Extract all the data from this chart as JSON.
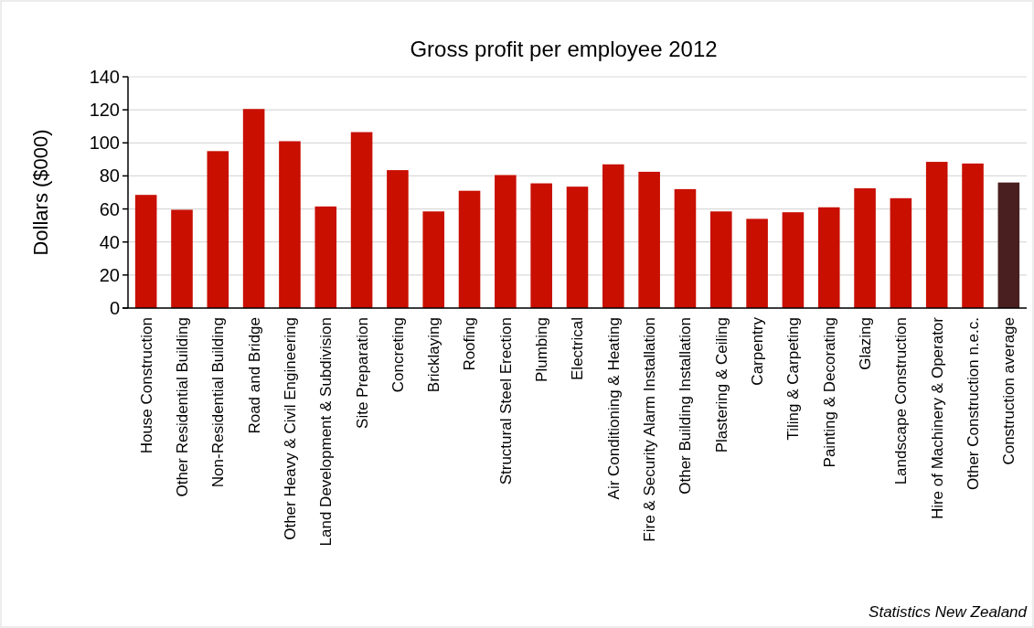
{
  "chart_data": {
    "type": "bar",
    "title": "Gross profit per employee 2012",
    "ylabel": "Dollars ($000)",
    "categories": [
      "House Construction",
      "Other Residential Building",
      "Non-Residential Building",
      "Road and Bridge",
      "Other Heavy & Civil Engineering",
      "Land Development & Subdivision",
      "Site Preparation",
      "Concreting",
      "Bricklaying",
      "Roofing",
      "Structural Steel Erection",
      "Plumbing",
      "Electrical",
      "Air Conditioning & Heating",
      "Fire & Security Alarm Installation",
      "Other Building Installation",
      "Plastering & Ceiling",
      "Carpentry",
      "Tiling & Carpeting",
      "Painting & Decorating",
      "Glazing",
      "Landscape Construction",
      "Hire of Machinery & Operator",
      "Other Construction n.e.c.",
      "Construction average"
    ],
    "values": [
      68.5,
      59.5,
      95,
      120.5,
      101,
      61.5,
      106.5,
      83.5,
      58.5,
      71,
      80.5,
      75.5,
      73.5,
      87,
      82.5,
      72,
      58.5,
      54,
      58,
      61,
      72.5,
      66.5,
      88.5,
      87.5,
      76
    ],
    "colors": [
      "#c80f00",
      "#c80f00",
      "#c80f00",
      "#c80f00",
      "#c80f00",
      "#c80f00",
      "#c80f00",
      "#c80f00",
      "#c80f00",
      "#c80f00",
      "#c80f00",
      "#c80f00",
      "#c80f00",
      "#c80f00",
      "#c80f00",
      "#c80f00",
      "#c80f00",
      "#c80f00",
      "#c80f00",
      "#c80f00",
      "#c80f00",
      "#c80f00",
      "#c80f00",
      "#c80f00",
      "#4a1f1f"
    ],
    "ylim": [
      0,
      140
    ],
    "yticks": [
      0,
      20,
      40,
      60,
      80,
      100,
      120,
      140
    ],
    "grid": "y",
    "annotations": [
      "Statistics New Zealand"
    ]
  }
}
